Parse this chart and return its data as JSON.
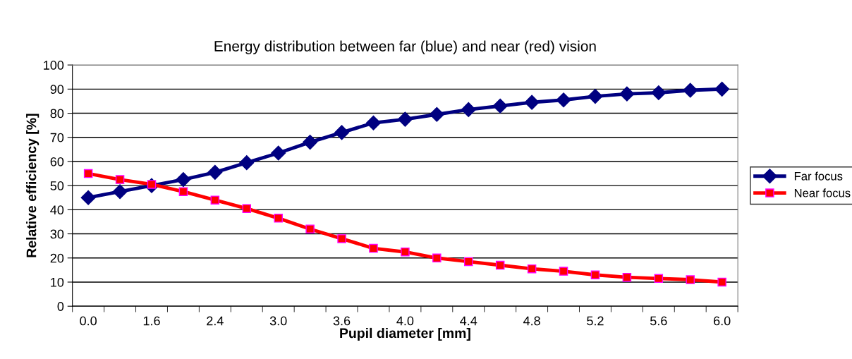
{
  "chart_data": {
    "type": "line",
    "title": "Energy distribution between far (blue) and near (red) vision",
    "xlabel": "Pupil diameter [mm]",
    "ylabel": "Relative efficiency [%]",
    "categories": [
      "0.0",
      null,
      "1.6",
      null,
      "2.4",
      null,
      "3.0",
      null,
      "3.6",
      null,
      "4.0",
      null,
      "4.4",
      null,
      "4.8",
      null,
      "5.2",
      null,
      "5.6",
      null,
      "6.0"
    ],
    "series": [
      {
        "name": "Far focus",
        "color": "#000080",
        "marker": "diamond",
        "values": [
          45,
          47.5,
          50,
          52.5,
          55.5,
          59.5,
          63.5,
          68,
          72,
          76,
          77.5,
          79.5,
          81.5,
          83,
          84.5,
          85.5,
          87,
          88,
          88.5,
          89.5,
          90
        ]
      },
      {
        "name": "Near focus",
        "color": "#ff0000",
        "marker": "square",
        "values": [
          55,
          52.5,
          50.5,
          47.5,
          44,
          40.5,
          36.5,
          32,
          28,
          24,
          22.5,
          20,
          18.5,
          17,
          15.5,
          14.5,
          13,
          12,
          11.5,
          11,
          10
        ]
      }
    ],
    "ylim": [
      0,
      100
    ],
    "yticks": [
      0,
      10,
      20,
      30,
      40,
      50,
      60,
      70,
      80,
      90,
      100
    ],
    "grid": "y",
    "legend": "right",
    "line_style": "solid"
  }
}
